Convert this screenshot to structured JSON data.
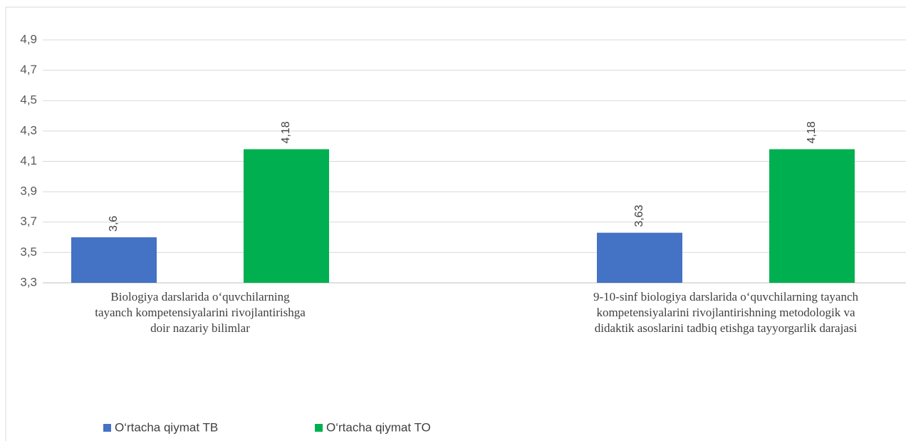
{
  "chart_data": {
    "type": "bar",
    "categories": [
      "Biologiya darslarida o‘quvchilarning tayanch kompetensiyalarini rivojlantirishga doir nazariy bilimlar",
      "9-10-sinf biologiya darslarida o‘quvchilarning tayanch kompetensiyalarini rivojlantirishning metodologik va didaktik asoslarini tadbiq etishga tayyorgarlik darajasi"
    ],
    "series": [
      {
        "name": "O‘rtacha qiymat TB",
        "color": "#4472c4",
        "values": [
          3.6,
          3.63
        ],
        "value_labels": [
          "3,6",
          "3,63"
        ]
      },
      {
        "name": "O‘rtacha qiymat TO",
        "color": "#00b050",
        "values": [
          4.18,
          4.18
        ],
        "value_labels": [
          "4,18",
          "4,18"
        ]
      }
    ],
    "ylim": [
      3.3,
      4.9
    ],
    "yticks": [
      {
        "value": 3.3,
        "label": "3,3"
      },
      {
        "value": 3.5,
        "label": "3,5"
      },
      {
        "value": 3.7,
        "label": "3,7"
      },
      {
        "value": 3.9,
        "label": "3,9"
      },
      {
        "value": 4.1,
        "label": "4,1"
      },
      {
        "value": 4.3,
        "label": "4,3"
      },
      {
        "value": 4.5,
        "label": "4,5"
      },
      {
        "value": 4.7,
        "label": "4,7"
      },
      {
        "value": 4.9,
        "label": "4,9"
      }
    ],
    "grid": true,
    "legend": "bottom-left"
  }
}
